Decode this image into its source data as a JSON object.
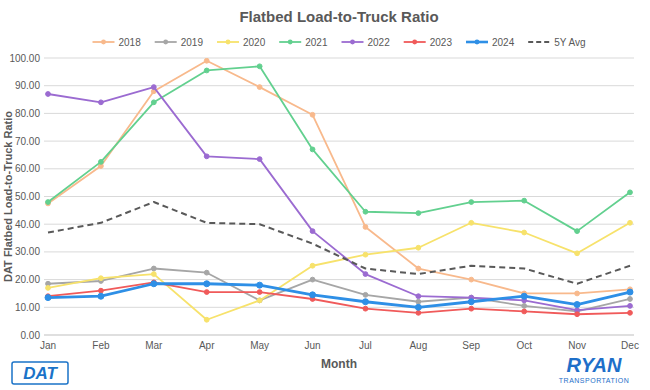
{
  "chart_data": {
    "type": "line",
    "title": "Flatbed Load-to-Truck Ratio",
    "x_label": "Month",
    "y_label": "DAT Flatbed Load-to-Truck Ratio",
    "annotations": [
      "DAT",
      "RYAN",
      "TRANSPORTATION"
    ],
    "categories": [
      "Jan",
      "Feb",
      "Mar",
      "Apr",
      "May",
      "Jun",
      "Jul",
      "Aug",
      "Sep",
      "Oct",
      "Nov",
      "Dec"
    ],
    "series": [
      {
        "name": "2018",
        "color": "#f8b98c",
        "marker": "circle",
        "values": [
          47.5,
          61,
          88,
          99,
          89.5,
          79.5,
          39,
          24,
          20,
          15,
          15,
          16.5
        ]
      },
      {
        "name": "2019",
        "color": "#a6a6a6",
        "marker": "circle",
        "values": [
          18.5,
          19.5,
          24,
          22.5,
          12.5,
          20,
          14.5,
          12,
          13.5,
          10.5,
          8.5,
          13
        ]
      },
      {
        "name": "2020",
        "color": "#f7e26b",
        "marker": "circle",
        "values": [
          17,
          20.5,
          22,
          5.5,
          12.5,
          25,
          29,
          31.5,
          40.5,
          37,
          29.5,
          40.5
        ]
      },
      {
        "name": "2021",
        "color": "#62d08f",
        "marker": "circle",
        "values": [
          48,
          62.5,
          84,
          95.5,
          97,
          67,
          44.5,
          44,
          48,
          48.5,
          37.5,
          51.5
        ]
      },
      {
        "name": "2022",
        "color": "#9b6bd1",
        "marker": "circle",
        "values": [
          87,
          84,
          89.5,
          64.5,
          63.5,
          37.5,
          22,
          14,
          13.5,
          12.5,
          9,
          10.5
        ]
      },
      {
        "name": "2023",
        "color": "#f05a5a",
        "marker": "circle",
        "values": [
          14,
          16,
          19,
          15.5,
          15.5,
          13,
          9.5,
          8,
          9.5,
          8.5,
          7.5,
          8
        ]
      },
      {
        "name": "2024",
        "color": "#2e8fe6",
        "marker": "circle",
        "values": [
          13.5,
          14,
          18.5,
          18.5,
          18,
          14.5,
          12,
          10,
          12,
          14,
          11,
          15.5
        ]
      },
      {
        "name": "5Y Avg",
        "color": "#595959",
        "line_style": "dashed",
        "values": [
          37,
          40.5,
          48,
          40.5,
          40,
          33,
          24,
          22,
          25,
          24,
          18.5,
          25
        ]
      }
    ],
    "ylim": [
      0,
      100
    ],
    "yticks": [
      {
        "value": 0,
        "label": "0.00"
      },
      {
        "value": 10,
        "label": "10.00"
      },
      {
        "value": 20,
        "label": "20.00"
      },
      {
        "value": 30,
        "label": "30.00"
      },
      {
        "value": 40,
        "label": "40.00"
      },
      {
        "value": 50,
        "label": "50.00"
      },
      {
        "value": 60,
        "label": "60.00"
      },
      {
        "value": 70,
        "label": "70.00"
      },
      {
        "value": 80,
        "label": "80.00"
      },
      {
        "value": 90,
        "label": "90.00"
      },
      {
        "value": 100,
        "label": "100.00"
      }
    ],
    "grid": true,
    "legend": "top"
  }
}
